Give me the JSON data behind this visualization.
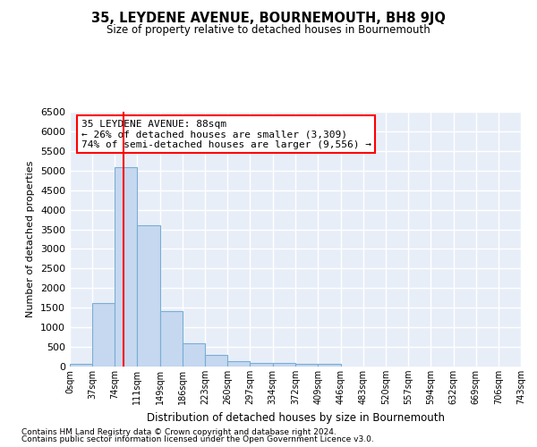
{
  "title": "35, LEYDENE AVENUE, BOURNEMOUTH, BH8 9JQ",
  "subtitle": "Size of property relative to detached houses in Bournemouth",
  "xlabel": "Distribution of detached houses by size in Bournemouth",
  "ylabel": "Number of detached properties",
  "bar_color": "#c5d8f0",
  "bar_edge_color": "#7aadd4",
  "background_color": "#e8eef8",
  "grid_color": "#ffffff",
  "bin_edges": [
    0,
    37,
    74,
    111,
    149,
    186,
    223,
    260,
    297,
    334,
    372,
    409,
    446,
    483,
    520,
    557,
    594,
    632,
    669,
    706,
    743
  ],
  "bin_labels": [
    "0sqm",
    "37sqm",
    "74sqm",
    "111sqm",
    "149sqm",
    "186sqm",
    "223sqm",
    "260sqm",
    "297sqm",
    "334sqm",
    "372sqm",
    "409sqm",
    "446sqm",
    "483sqm",
    "520sqm",
    "557sqm",
    "594sqm",
    "632sqm",
    "669sqm",
    "706sqm",
    "743sqm"
  ],
  "counts": [
    70,
    1630,
    5080,
    3600,
    1410,
    590,
    290,
    130,
    90,
    80,
    60,
    60,
    0,
    0,
    0,
    0,
    0,
    0,
    0,
    0
  ],
  "ylim": [
    0,
    6500
  ],
  "yticks": [
    0,
    500,
    1000,
    1500,
    2000,
    2500,
    3000,
    3500,
    4000,
    4500,
    5000,
    5500,
    6000,
    6500
  ],
  "property_sqm": 88,
  "annotation_title": "35 LEYDENE AVENUE: 88sqm",
  "annotation_line1": "← 26% of detached houses are smaller (3,309)",
  "annotation_line2": "74% of semi-detached houses are larger (9,556) →",
  "footnote1": "Contains HM Land Registry data © Crown copyright and database right 2024.",
  "footnote2": "Contains public sector information licensed under the Open Government Licence v3.0."
}
